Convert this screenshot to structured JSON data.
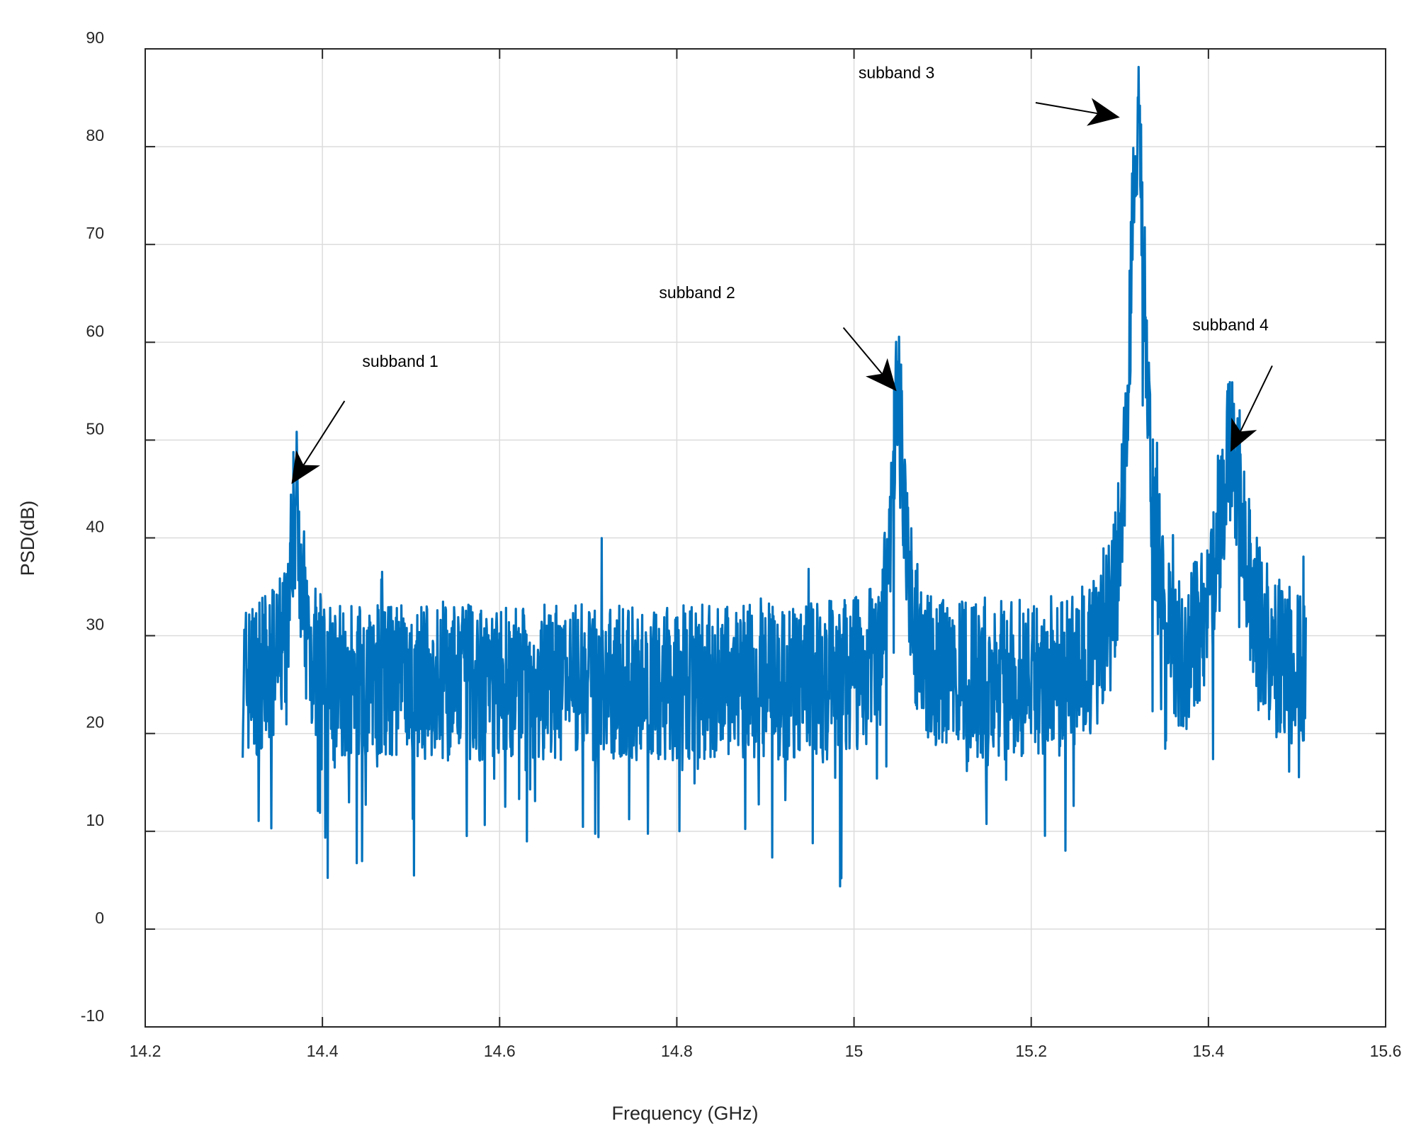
{
  "chart_data": {
    "type": "line",
    "title": "",
    "xlabel": "Frequency (GHz)",
    "ylabel": "PSD(dB)",
    "xlim": [
      14.2,
      15.6
    ],
    "ylim": [
      -10,
      90
    ],
    "x_ticks": [
      "14.2",
      "14.4",
      "14.6",
      "14.8",
      "15",
      "15.2",
      "15.4",
      "15.6"
    ],
    "y_ticks": [
      "-10",
      "0",
      "10",
      "20",
      "30",
      "40",
      "50",
      "60",
      "70",
      "80",
      "90"
    ],
    "grid": true,
    "series_color": "#0072BD",
    "x_range": [
      14.31,
      15.51
    ],
    "baseline": 26,
    "noise_spread": 8,
    "peaks": [
      {
        "x": 14.37,
        "y": 44.5,
        "width": 0.008
      },
      {
        "x": 15.05,
        "y": 55,
        "width": 0.009
      },
      {
        "x": 15.32,
        "y": 83,
        "width": 0.012
      },
      {
        "x": 15.425,
        "y": 49,
        "width": 0.02
      }
    ],
    "annotations": [
      {
        "text": "subband 1",
        "label_x": 14.445,
        "label_y": 57.5,
        "arrow_from": [
          14.425,
          54
        ],
        "arrow_to": [
          14.365,
          45.5
        ]
      },
      {
        "text": "subband 2",
        "label_x": 14.78,
        "label_y": 64.5,
        "arrow_from": [
          14.988,
          61.5
        ],
        "arrow_to": [
          15.048,
          55
        ]
      },
      {
        "text": "subband 3",
        "label_x": 15.005,
        "label_y": 87,
        "arrow_from": [
          15.205,
          84.5
        ],
        "arrow_to": [
          15.3,
          83
        ]
      },
      {
        "text": "subband 4",
        "label_x": 15.382,
        "label_y": 61.2,
        "arrow_from": [
          15.472,
          57.6
        ],
        "arrow_to": [
          15.425,
          48.8
        ]
      }
    ]
  }
}
